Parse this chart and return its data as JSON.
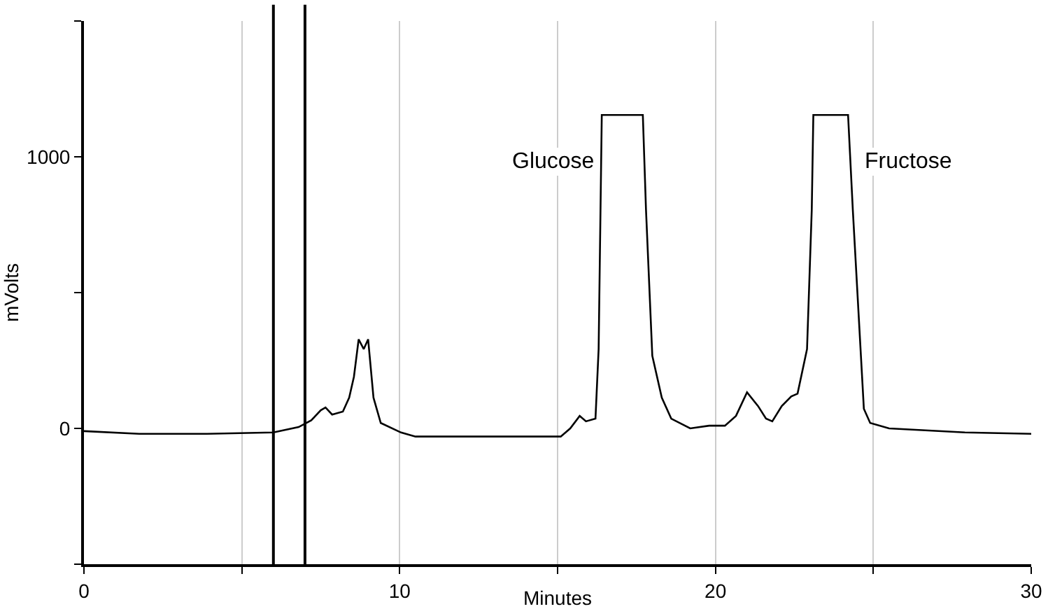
{
  "chart_data": {
    "type": "line",
    "xlabel": "Minutes",
    "ylabel": "mVolts",
    "x": [
      0,
      1.75,
      3.9,
      6.0,
      6.8,
      7.2,
      7.5,
      7.65,
      7.86,
      8.2,
      8.4,
      8.55,
      8.7,
      8.86,
      9.0,
      9.17,
      9.4,
      10.04,
      10.5,
      15.1,
      15.4,
      15.7,
      15.9,
      16.2,
      16.3,
      16.4,
      17.7,
      17.8,
      18.0,
      18.3,
      18.6,
      19.2,
      19.8,
      20.3,
      20.65,
      21.0,
      21.35,
      21.6,
      21.8,
      22.1,
      22.4,
      22.6,
      22.9,
      23.05,
      23.1,
      24.2,
      24.35,
      24.7,
      24.9,
      25.5,
      27.9,
      30
    ],
    "series": [
      {
        "color": "#000000",
        "values": [
          -10,
          -20,
          -20,
          -15,
          5,
          30,
          67,
          77,
          51,
          62,
          113,
          190,
          328,
          292,
          328,
          113,
          20,
          -15,
          -30,
          -30,
          0,
          46,
          26,
          36,
          292,
          1154,
          1154,
          805,
          267,
          113,
          36,
          0,
          10,
          10,
          46,
          133,
          82,
          36,
          26,
          82,
          118,
          128,
          292,
          805,
          1154,
          1154,
          805,
          72,
          20,
          0,
          -15,
          -20
        ]
      }
    ],
    "xlim": [
      0,
      30
    ],
    "xticks": [
      0,
      {
        "value": 5,
        "label": null
      },
      10,
      {
        "value": 15,
        "label": null
      },
      20,
      {
        "value": 25,
        "label": null
      },
      30
    ],
    "ylim": [
      -500,
      1500
    ],
    "yticks": [
      {
        "value": -500,
        "label": null
      },
      0,
      {
        "value": 500,
        "label": null
      },
      1000,
      {
        "value": 1500,
        "label": null
      }
    ],
    "ref_lines": [
      {
        "axis": "x",
        "value": 6,
        "color": "#000000"
      },
      {
        "axis": "x",
        "value": 7,
        "color": "#000000"
      }
    ],
    "annotations": [
      {
        "text": "Glucose",
        "x": 16.4,
        "y": 1154
      },
      {
        "text": "Fructose",
        "x": 24.2,
        "y": 1154
      }
    ],
    "grid": "x",
    "marker": "none",
    "line_style": "solid"
  }
}
